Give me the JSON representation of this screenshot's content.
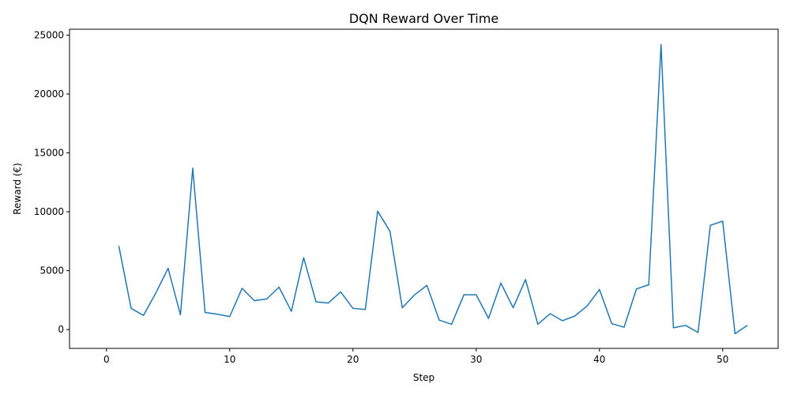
{
  "chart_data": {
    "type": "line",
    "title": "DQN Reward Over Time",
    "xlabel": "Step",
    "ylabel": "Reward (€)",
    "xlim": [
      -3,
      54.5
    ],
    "ylim": [
      -1600,
      25500
    ],
    "xticks": [
      0,
      10,
      20,
      30,
      40,
      50
    ],
    "yticks": [
      0,
      5000,
      10000,
      15000,
      20000,
      25000
    ],
    "grid": false,
    "series": [
      {
        "color": "#1f77b4",
        "x": [
          1,
          2,
          3,
          4,
          5,
          6,
          7,
          8,
          9,
          10,
          11,
          12,
          13,
          14,
          15,
          16,
          17,
          18,
          19,
          20,
          21,
          22,
          23,
          24,
          25,
          26,
          27,
          28,
          29,
          30,
          31,
          32,
          33,
          34,
          35,
          36,
          37,
          38,
          39,
          40,
          41,
          42,
          43,
          44,
          45,
          46,
          47,
          48,
          49,
          50,
          51,
          52
        ],
        "y": [
          7100,
          1800,
          1200,
          3100,
          5200,
          1250,
          13700,
          1450,
          1300,
          1100,
          3500,
          2450,
          2600,
          3600,
          1550,
          6100,
          2350,
          2250,
          3200,
          1800,
          1700,
          10050,
          8350,
          1850,
          2950,
          3750,
          800,
          450,
          2950,
          2950,
          950,
          3950,
          1850,
          4250,
          450,
          1350,
          750,
          1150,
          2000,
          3400,
          500,
          200,
          3450,
          3800,
          24200,
          150,
          350,
          -250,
          8850,
          9200,
          -350,
          350
        ]
      }
    ]
  }
}
